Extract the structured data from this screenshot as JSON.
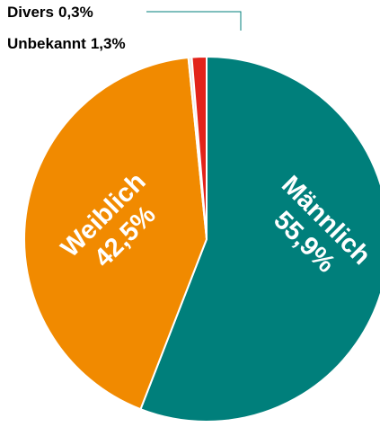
{
  "chart_data": {
    "type": "pie",
    "categories": [
      "Männlich",
      "Weiblich",
      "Divers",
      "Unbekannt"
    ],
    "values": [
      55.9,
      42.5,
      0.3,
      1.3
    ],
    "value_labels": [
      "55,9%",
      "42,5%",
      "0,3%",
      "1,3%"
    ],
    "colors": [
      "#007f7b",
      "#f18a00",
      "#e6e6e6",
      "#e2231a"
    ]
  }
}
